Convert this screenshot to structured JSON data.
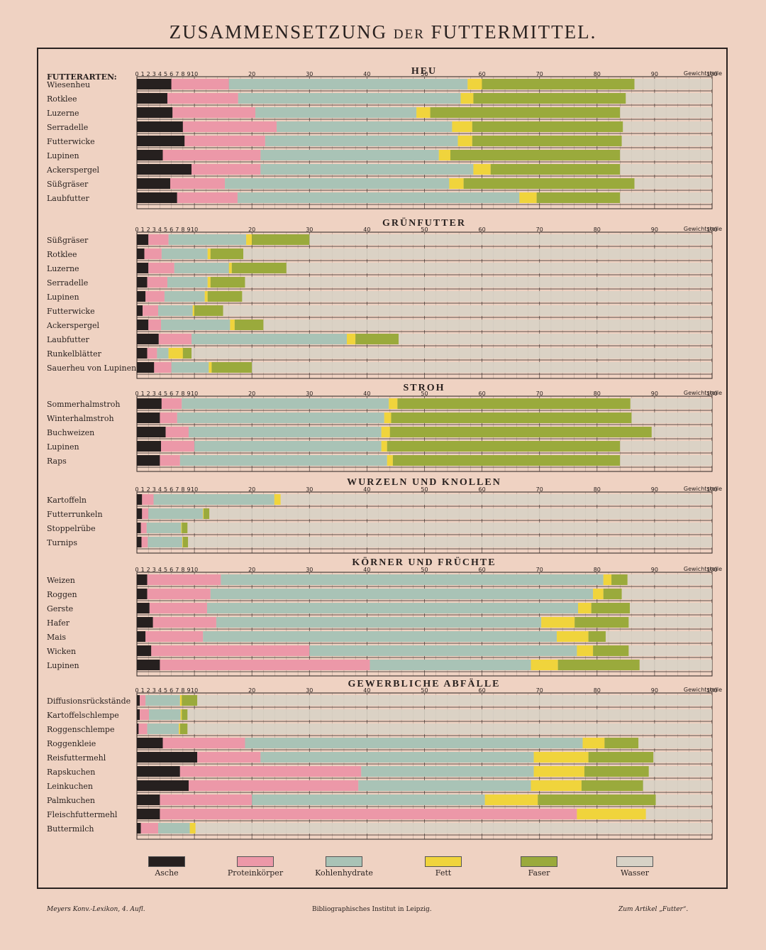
{
  "title": {
    "main1": "ZUSAMMENSETZUNG",
    "small": "DER",
    "main2": "FUTTERMITTEL."
  },
  "header_label": "FUTTERARTEN:",
  "unit_label": "Gewichtsteile",
  "footer": {
    "left": "Meyers Konv.-Lexikon, 4. Aufl.",
    "center": "Bibliographisches Institut in Leipzig.",
    "right": "Zum Artikel „Futter“."
  },
  "legend": [
    {
      "label": "Asche",
      "color": "#26201f"
    },
    {
      "label": "Proteinkörper",
      "color": "#ec98a8"
    },
    {
      "label": "Kohlenhydrate",
      "color": "#a9c3b6"
    },
    {
      "label": "Fett",
      "color": "#f0d43c"
    },
    {
      "label": "Faser",
      "color": "#9aaa3c"
    },
    {
      "label": "Wasser",
      "color": "#d7d2c6"
    }
  ],
  "chart_data": {
    "type": "bar",
    "stacked": true,
    "orientation": "horizontal",
    "xlim": [
      0,
      100
    ],
    "xticks": [
      0,
      1,
      2,
      3,
      4,
      5,
      6,
      7,
      8,
      9,
      10,
      20,
      30,
      40,
      50,
      60,
      70,
      80,
      90,
      100
    ],
    "series_order": [
      "Asche",
      "Proteinkörper",
      "Kohlenhydrate",
      "Fett",
      "Faser",
      "Wasser"
    ],
    "sections": [
      {
        "title": "HEU",
        "rows": [
          {
            "label": "Wiesenheu",
            "values": [
              6,
              10,
              41.5,
              2.5,
              26.5,
              13.5
            ]
          },
          {
            "label": "Rotklee",
            "values": [
              5.3,
              12.3,
              38.7,
              2.2,
              26.5,
              15
            ]
          },
          {
            "label": "Luzerne",
            "values": [
              6.2,
              14.4,
              28,
              2.4,
              33,
              16
            ]
          },
          {
            "label": "Serradelle",
            "values": [
              8,
              16.3,
              30.5,
              3.5,
              26.2,
              15.5
            ]
          },
          {
            "label": "Futterwicke",
            "values": [
              8.3,
              14,
              33.5,
              2.5,
              26,
              15.7
            ]
          },
          {
            "label": "Lupinen",
            "values": [
              4.5,
              17,
              31,
              2,
              29.5,
              16
            ]
          },
          {
            "label": "Ackerspergel",
            "values": [
              9.5,
              12,
              37,
              3,
              22.5,
              16
            ]
          },
          {
            "label": "Süßgräser",
            "values": [
              5.8,
              9.5,
              39,
              2.5,
              29.7,
              13.5
            ]
          },
          {
            "label": "Laubfutter",
            "values": [
              7,
              10.5,
              49,
              3,
              14.5,
              16
            ]
          }
        ]
      },
      {
        "title": "GRÜNFUTTER",
        "rows": [
          {
            "label": "Süßgräser",
            "values": [
              2,
              3.5,
              13.5,
              1,
              10,
              70
            ]
          },
          {
            "label": "Rotklee",
            "values": [
              1.3,
              3,
              8,
              0.5,
              5.7,
              81.5
            ]
          },
          {
            "label": "Luzerne",
            "values": [
              2,
              4.5,
              9.5,
              0.5,
              9.5,
              74
            ]
          },
          {
            "label": "Serradelle",
            "values": [
              1.8,
              3.5,
              7,
              0.5,
              6,
              81.2
            ]
          },
          {
            "label": "Lupinen",
            "values": [
              1.5,
              3.3,
              7,
              0.5,
              6,
              81.7
            ]
          },
          {
            "label": "Futterwicke",
            "values": [
              1,
              2.7,
              6,
              0.3,
              5,
              85
            ]
          },
          {
            "label": "Ackerspergel",
            "values": [
              2,
              2.2,
              12,
              0.8,
              5,
              78
            ]
          },
          {
            "label": "Laubfutter",
            "values": [
              3.8,
              5.7,
              27,
              1.5,
              7.5,
              54.5
            ]
          },
          {
            "label": "Runkelblätter",
            "values": [
              1.8,
              1.7,
              2,
              2.5,
              1.5,
              90.5
            ]
          },
          {
            "label": "Sauerheu von Lupinen",
            "values": [
              3,
              3,
              6.5,
              0.5,
              7,
              80
            ]
          }
        ]
      },
      {
        "title": "STROH",
        "rows": [
          {
            "label": "Sommerhalmstroh",
            "values": [
              4.3,
              3.5,
              36,
              1.5,
              40.5,
              14.2
            ]
          },
          {
            "label": "Winterhalmstroh",
            "values": [
              4,
              3,
              36,
              1.2,
              41.8,
              14
            ]
          },
          {
            "label": "Buchweizen",
            "values": [
              5,
              4,
              33.5,
              1.5,
              45.5,
              10.5
            ]
          },
          {
            "label": "Lupinen",
            "values": [
              4.2,
              5.8,
              32.5,
              1,
              40.5,
              16
            ]
          },
          {
            "label": "Raps",
            "values": [
              4,
              3.5,
              36,
              1,
              39.5,
              16
            ]
          }
        ]
      },
      {
        "title": "WURZELN UND KNOLLEN",
        "rows": [
          {
            "label": "Kartoffeln",
            "values": [
              0.9,
              2,
              21,
              1.1,
              0,
              75
            ]
          },
          {
            "label": "Futterrunkeln",
            "values": [
              0.9,
              1.1,
              9.5,
              0.1,
              1,
              87.4
            ]
          },
          {
            "label": "Stoppelrübe",
            "values": [
              0.7,
              1,
              6,
              0.1,
              1,
              91.2
            ]
          },
          {
            "label": "Turnips",
            "values": [
              0.8,
              1.1,
              6,
              0.1,
              0.9,
              91.1
            ]
          }
        ]
      },
      {
        "title": "KÖRNER UND FRÜCHTE",
        "rows": [
          {
            "label": "Weizen",
            "values": [
              1.8,
              12.8,
              66.5,
              1.4,
              2.8,
              14.7
            ]
          },
          {
            "label": "Roggen",
            "values": [
              1.8,
              11,
              66.5,
              1.8,
              3.2,
              15.7
            ]
          },
          {
            "label": "Gerste",
            "values": [
              2.2,
              10,
              64.5,
              2.3,
              6.7,
              14.3
            ]
          },
          {
            "label": "Hafer",
            "values": [
              2.8,
              11,
              56.5,
              5.8,
              9.4,
              14.5
            ]
          },
          {
            "label": "Mais",
            "values": [
              1.5,
              10,
              61.5,
              5.5,
              3,
              18.5
            ]
          },
          {
            "label": "Wicken",
            "values": [
              2.5,
              27.5,
              46.5,
              2.8,
              6.2,
              14.5
            ]
          },
          {
            "label": "Lupinen",
            "values": [
              4,
              36.5,
              28,
              4.7,
              14.2,
              12.6
            ]
          }
        ]
      },
      {
        "title": "GEWERBLICHE ABFÄLLE",
        "rows": [
          {
            "label": "Diffusionsrückstände",
            "values": [
              0.5,
              1,
              6,
              0.3,
              2.7,
              89.5
            ]
          },
          {
            "label": "Kartoffelschlempe",
            "values": [
              0.5,
              1.6,
              5.5,
              0.2,
              1,
              91.2
            ]
          },
          {
            "label": "Roggenschlempe",
            "values": [
              0.3,
              1.5,
              5.5,
              0.2,
              1.3,
              91.2
            ]
          },
          {
            "label": "Roggenkleie",
            "values": [
              4.5,
              14.3,
              58.7,
              3.8,
              5.9,
              12.8
            ]
          },
          {
            "label": "Reisfuttermehl",
            "values": [
              10.5,
              11,
              47.5,
              9.5,
              11.3,
              10.2
            ]
          },
          {
            "label": "Rapskuchen",
            "values": [
              7.5,
              31.5,
              30,
              8.8,
              11.2,
              11
            ]
          },
          {
            "label": "Leinkuchen",
            "values": [
              9,
              29.5,
              30,
              8.8,
              10.7,
              12
            ]
          },
          {
            "label": "Palmkuchen",
            "values": [
              4,
              16,
              40.5,
              9.2,
              20.5,
              9.8
            ]
          },
          {
            "label": "Fleischfuttermehl",
            "values": [
              4,
              72.5,
              0,
              12,
              0,
              11.5
            ]
          },
          {
            "label": "Buttermilch",
            "values": [
              0.7,
              3,
              5.5,
              1,
              0,
              89.8
            ]
          }
        ]
      }
    ]
  }
}
